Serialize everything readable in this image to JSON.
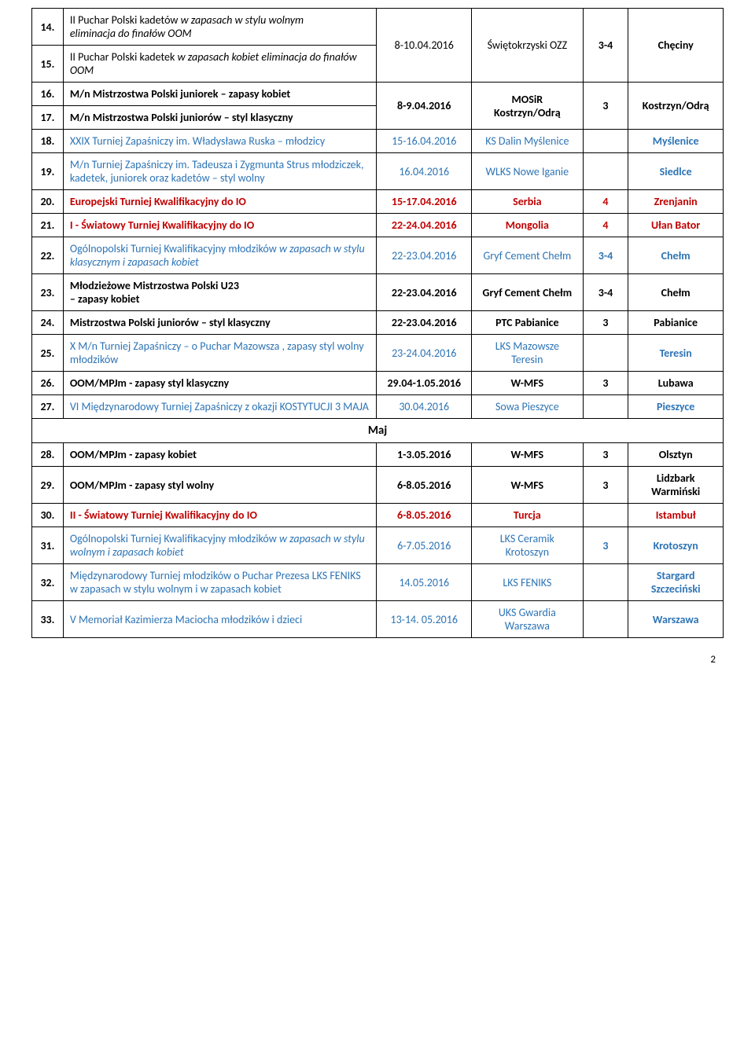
{
  "rows": [
    {
      "num": "14.",
      "name": "II Puchar Polski kadetów <em>w zapasach w stylu wolnym</em><br><em>eliminacja do finałów OOM</em>",
      "date": "8-10.04.2016",
      "org": "Świętokrzyski OZZ",
      "cnt": "3-4",
      "loc": "Chęciny",
      "merge": "start",
      "span": 2
    },
    {
      "num": "15.",
      "name": "II Puchar Polski kadetek <em>w zapasach kobiet eliminacja do finałów OOM</em>",
      "merge": "cont"
    },
    {
      "num": "16.",
      "name": "M/n Mistrzostwa Polski juniorek – zapasy kobiet",
      "date": "8-9.04.2016",
      "org": "MOSiR Kostrzyn/Odrą",
      "cnt": "3",
      "loc": "Kostrzyn/Odrą",
      "merge": "start",
      "span": 2,
      "bold": true
    },
    {
      "num": "17.",
      "name": "M/n Mistrzostwa Polski juniorów – styl klasyczny",
      "merge": "cont",
      "bold": true
    },
    {
      "num": "18.",
      "name": "XXIX Turniej Zapaśniczy im. Władysława Ruska – młodzicy",
      "date": "15-16.04.2016",
      "org": "KS Dalin Myślenice",
      "cnt": "",
      "loc": "Myślenice",
      "color": "blue"
    },
    {
      "num": "19.",
      "name": "M/n Turniej Zapaśniczy im. Tadeusza i Zygmunta Strus młodziczek, kadetek, juniorek oraz kadetów – styl wolny",
      "date": "16.04.2016",
      "org": "WLKS Nowe Iganie",
      "cnt": "",
      "loc": "Siedlce",
      "color": "blue"
    },
    {
      "num": "20.",
      "name": "Europejski Turniej Kwalifikacyjny do IO",
      "date": "15-17.04.2016",
      "org": "Serbia",
      "cnt": "4",
      "loc": "Zrenjanin",
      "color": "red",
      "bold": true
    },
    {
      "num": "21.",
      "name": "I - Światowy Turniej Kwalifikacyjny do IO",
      "date": "22-24.04.2016",
      "org": "Mongolia",
      "cnt": "4",
      "loc": "Ułan Bator",
      "color": "red",
      "bold": true
    },
    {
      "num": "22.",
      "name": "Ogólnopolski Turniej Kwalifikacyjny młodzików <em>w zapasach w stylu klasycznym i zapasach kobiet</em>",
      "date": "22-23.04.2016",
      "org": "Gryf Cement Chełm",
      "cnt": "3-4",
      "loc": "Chełm",
      "color": "blue"
    },
    {
      "num": "23.",
      "name": "Młodzieżowe Mistrzostwa Polski  U23<br>– zapasy kobiet",
      "date": "22-23.04.2016",
      "org": "Gryf Cement Chełm",
      "cnt": "3-4",
      "loc": "Chełm",
      "bold": true
    },
    {
      "num": "24.",
      "name": "Mistrzostwa Polski juniorów – styl klasyczny",
      "date": "22-23.04.2016",
      "org": "PTC Pabianice",
      "cnt": "3",
      "loc": "Pabianice",
      "bold": true
    },
    {
      "num": "25.",
      "name": "X M/n Turniej Zapaśniczy – o Puchar Mazowsza , zapasy styl wolny młodzików",
      "date": "23-24.04.2016",
      "org": "LKS Mazowsze Teresin",
      "cnt": "",
      "loc": "Teresin",
      "color": "blue"
    },
    {
      "num": "26.",
      "name": "OOM/MPJm -  zapasy styl  klasyczny",
      "date": "29.04-1.05.2016",
      "org": "W-MFS",
      "cnt": "3",
      "loc": "Lubawa",
      "bold": true
    },
    {
      "num": "27.",
      "name": "VI Międzynarodowy Turniej Zapaśniczy z okazji KOSTYTUCJI 3 MAJA",
      "date": "30.04.2016",
      "org": "Sowa Pieszyce",
      "cnt": "",
      "loc": "Pieszyce",
      "color": "blue"
    },
    {
      "month": "Maj"
    },
    {
      "num": "28.",
      "name": "OOM/MPJm - zapasy kobiet",
      "date": "1-3.05.2016",
      "org": "W-MFS",
      "cnt": "3",
      "loc": "Olsztyn",
      "bold": true
    },
    {
      "num": "29.",
      "name": "OOM/MPJm - zapasy styl  wolny",
      "date": "6-8.05.2016",
      "org": "W-MFS",
      "cnt": "3",
      "loc": "Lidzbark Warmiński",
      "bold": true
    },
    {
      "num": "30.",
      "name": "II - Światowy Turniej Kwalifikacyjny do IO",
      "date": "6-8.05.2016",
      "org": "Turcja",
      "cnt": "",
      "loc": "Istambuł",
      "color": "red",
      "bold": true
    },
    {
      "num": "31.",
      "name": "Ogólnopolski Turniej Kwalifikacyjny młodzików <em>w zapasach w stylu wolnym i zapasach kobiet</em>",
      "date": "6-7.05.2016",
      "org": "LKS Ceramik Krotoszyn",
      "cnt": "3",
      "loc": "Krotoszyn",
      "color": "blue"
    },
    {
      "num": "32.",
      "name": "Międzynarodowy Turniej młodzików o Puchar Prezesa LKS FENIKS w zapasach w stylu wolnym i w zapasach kobiet",
      "date": "14.05.2016",
      "org": "LKS FENIKS",
      "cnt": "",
      "loc": "Stargard Szczeciński",
      "color": "blue"
    },
    {
      "num": "33.",
      "name": "V Memoriał Kazimierza Maciocha  młodzików i dzieci",
      "date": "13-14. 05.2016",
      "org": "UKS Gwardia Warszawa",
      "cnt": "",
      "loc": "Warszawa",
      "color": "blue"
    }
  ],
  "pagenum": "2"
}
